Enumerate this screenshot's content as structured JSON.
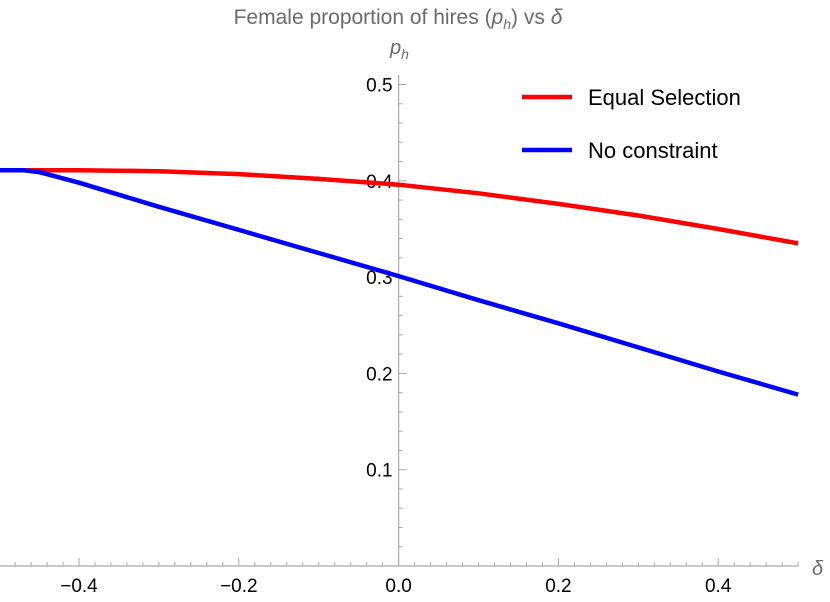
{
  "chart_data": {
    "type": "line",
    "title": "Female proportion of hires (p_h) vs δ",
    "title_parts": {
      "pre": "Female proportion of hires (",
      "var": "p",
      "sub": "h",
      "post": ") vs ",
      "delta": "δ"
    },
    "xlabel": "δ",
    "ylabel": {
      "var": "p",
      "sub": "h"
    },
    "xlim": [
      -0.5,
      0.5
    ],
    "ylim": [
      0,
      0.5
    ],
    "xticks": [
      -0.4,
      -0.2,
      0.0,
      0.2,
      0.4
    ],
    "xtick_labels": [
      "−0.4",
      "−0.2",
      "0.0",
      "0.2",
      "0.4"
    ],
    "yticks": [
      0.1,
      0.2,
      0.3,
      0.4,
      0.5
    ],
    "ytick_labels": [
      "0.1",
      "0.2",
      "0.3",
      "0.4",
      "0.5"
    ],
    "grid": false,
    "legend_position": "top-right",
    "series": [
      {
        "name": "Equal Selection",
        "color": "#ff0000",
        "x": [
          -0.5,
          -0.4,
          -0.3,
          -0.2,
          -0.1,
          0.0,
          0.1,
          0.2,
          0.3,
          0.4,
          0.5
        ],
        "y": [
          0.411,
          0.411,
          0.41,
          0.407,
          0.402,
          0.396,
          0.387,
          0.376,
          0.364,
          0.35,
          0.335
        ]
      },
      {
        "name": "No constraint",
        "color": "#0000ff",
        "x": [
          -0.5,
          -0.47,
          -0.45,
          -0.4,
          -0.3,
          -0.2,
          -0.1,
          0.0,
          0.1,
          0.2,
          0.3,
          0.4,
          0.5
        ],
        "y": [
          0.411,
          0.411,
          0.409,
          0.398,
          0.373,
          0.349,
          0.325,
          0.301,
          0.276,
          0.252,
          0.227,
          0.202,
          0.178
        ]
      }
    ]
  }
}
